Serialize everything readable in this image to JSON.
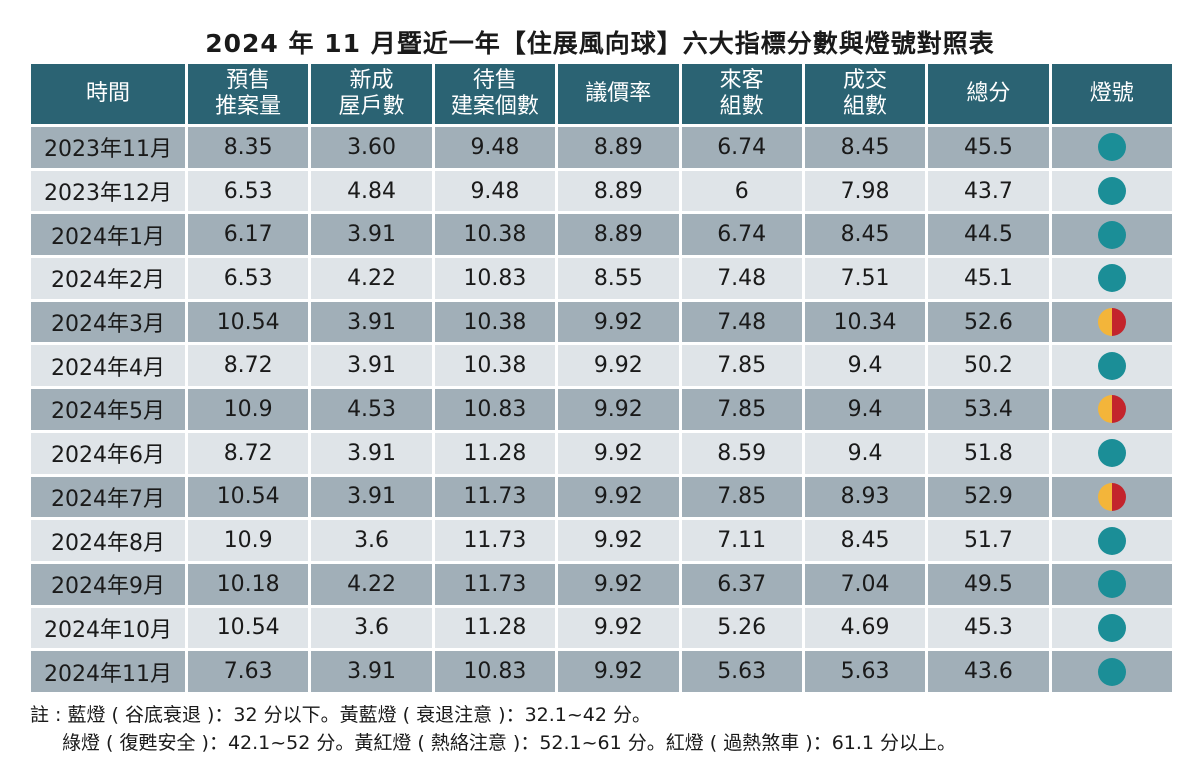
{
  "title": "2024 年 11 月暨近一年【住展風向球】六大指標分數與燈號對照表",
  "table": {
    "header": [
      [
        "時間"
      ],
      [
        "預售",
        "推案量"
      ],
      [
        "新成",
        "屋戶數"
      ],
      [
        "待售",
        "建案個數"
      ],
      [
        "議價率"
      ],
      [
        "來客",
        "組數"
      ],
      [
        "成交",
        "組數"
      ],
      [
        "總分"
      ],
      [
        "燈號"
      ]
    ],
    "rows": [
      [
        "2023年11月",
        "8.35",
        "3.60",
        "9.48",
        "8.89",
        "6.74",
        "8.45",
        "45.5"
      ],
      [
        "2023年12月",
        "6.53",
        "4.84",
        "9.48",
        "8.89",
        "6",
        "7.98",
        "43.7"
      ],
      [
        "2024年1月",
        "6.17",
        "3.91",
        "10.38",
        "8.89",
        "6.74",
        "8.45",
        "44.5"
      ],
      [
        "2024年2月",
        "6.53",
        "4.22",
        "10.83",
        "8.55",
        "7.48",
        "7.51",
        "45.1"
      ],
      [
        "2024年3月",
        "10.54",
        "3.91",
        "10.38",
        "9.92",
        "7.48",
        "10.34",
        "52.6"
      ],
      [
        "2024年4月",
        "8.72",
        "3.91",
        "10.38",
        "9.92",
        "7.85",
        "9.4",
        "50.2"
      ],
      [
        "2024年5月",
        "10.9",
        "4.53",
        "10.83",
        "9.92",
        "7.85",
        "9.4",
        "53.4"
      ],
      [
        "2024年6月",
        "8.72",
        "3.91",
        "11.28",
        "9.92",
        "8.59",
        "9.4",
        "51.8"
      ],
      [
        "2024年7月",
        "10.54",
        "3.91",
        "11.73",
        "9.92",
        "7.85",
        "8.93",
        "52.9"
      ],
      [
        "2024年8月",
        "10.9",
        "3.6",
        "11.73",
        "9.92",
        "7.11",
        "8.45",
        "51.7"
      ],
      [
        "2024年9月",
        "10.18",
        "4.22",
        "11.73",
        "9.92",
        "6.37",
        "7.04",
        "49.5"
      ],
      [
        "2024年10月",
        "10.54",
        "3.6",
        "11.28",
        "9.92",
        "5.26",
        "4.69",
        "45.3"
      ],
      [
        "2024年11月",
        "7.63",
        "3.91",
        "10.83",
        "9.92",
        "5.63",
        "5.63",
        "43.6"
      ]
    ],
    "lights": [
      [
        "#1b8e97"
      ],
      [
        "#1b8e97"
      ],
      [
        "#1b8e97"
      ],
      [
        "#1b8e97"
      ],
      [
        "#f3b53a",
        "#c3242c"
      ],
      [
        "#1b8e97"
      ],
      [
        "#f3b53a",
        "#c3242c"
      ],
      [
        "#1b8e97"
      ],
      [
        "#f3b53a",
        "#c3242c"
      ],
      [
        "#1b8e97"
      ],
      [
        "#1b8e97"
      ],
      [
        "#1b8e97"
      ],
      [
        "#1b8e97"
      ]
    ]
  },
  "notes": [
    "註 : 藍燈 ( 谷底衰退 )：32 分以下。黃藍燈 ( 衰退注意 )：32.1~42 分。",
    "綠燈 ( 復甦安全 )：42.1~52 分。黃紅燈 ( 熱絡注意 )：52.1~61 分。紅燈 ( 過熱煞車 )：61.1 分以上。"
  ]
}
